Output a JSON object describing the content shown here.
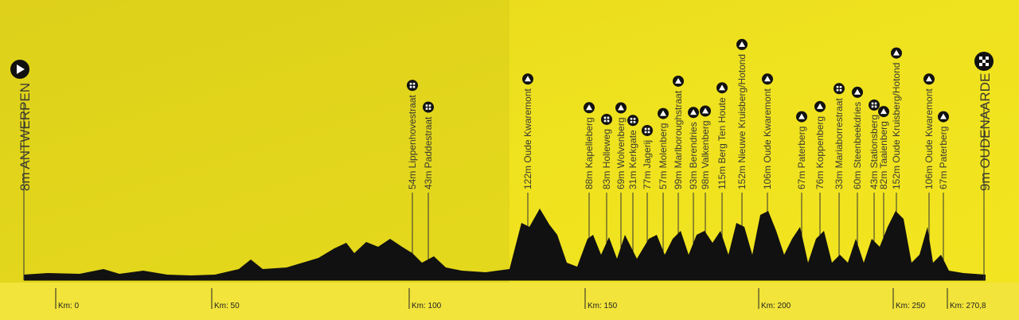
{
  "route": {
    "start": "8m ANTWERPEN",
    "finish": "9m OUDENAARDE",
    "sectors": [
      "54m Lippenhovestraat",
      "43m Paddestraat",
      "122m Oude Kwaremont",
      "88m Kapelleberg",
      "83m Holleweg",
      "69m Wolvenberg",
      "31m Kerkgate",
      "77m Jagerij",
      "57m Molenberg",
      "99m Marlboroughstraat",
      "93m Berendries",
      "98m Valkenberg",
      "115m Berg Ten Houte",
      "152m Nieuwe Kruisberg/Hotond",
      "106m Oude Kwaremont",
      "67m Paterberg",
      "76m Koppenberg",
      "33m Mariaborrestraat",
      "60m Steenbeekdries",
      "43m Stationsberg",
      "82m Taaienberg",
      "152m Oude Kruisberg/Hotond",
      "106m Oude Kwaremont",
      "67m Paterberg"
    ],
    "km_markers": [
      "Km: 0",
      "Km: 50",
      "Km: 100",
      "Km: 150",
      "Km: 200",
      "Km: 250",
      "Km: 270,8"
    ]
  }
}
